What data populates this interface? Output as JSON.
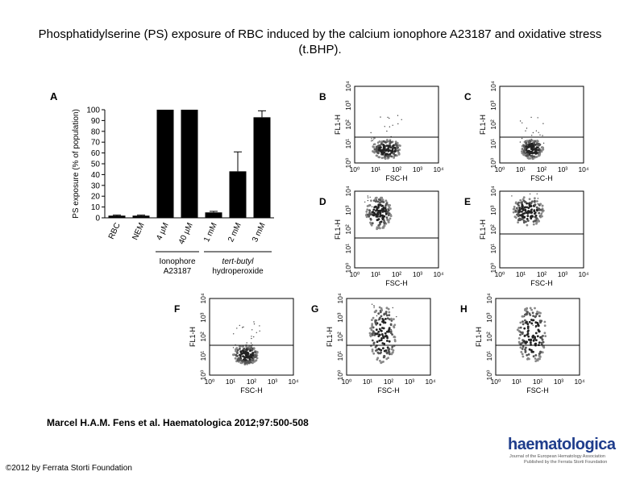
{
  "title": "Phosphatidylserine (PS) exposure of RBC induced by the calcium ionophore A23187 and oxidative stress (t.BHP).",
  "citation": "Marcel H.A.M. Fens et al. Haematologica 2012;97:500-508",
  "copyright": "©2012 by Ferrata Storti Foundation",
  "logo": {
    "word": "haematologica",
    "line1": "Journal of the European Hematology Association",
    "line2": "Published by the Ferrata Storti Foundation"
  },
  "chart_data": {
    "type": "bar",
    "panel_label": "A",
    "ylabel": "PS exposure (% of population)",
    "ylim": [
      0,
      100
    ],
    "yticks": [
      0,
      10,
      20,
      30,
      40,
      50,
      60,
      70,
      80,
      90,
      100
    ],
    "categories": [
      "RBC",
      "NEM",
      "4 µM",
      "40 µM",
      "1 mM",
      "2 mM",
      "3 mM"
    ],
    "values": [
      2,
      2,
      100,
      100,
      5,
      43,
      93
    ],
    "errors": [
      0.5,
      0.5,
      0,
      0,
      1,
      18,
      6
    ],
    "groups": [
      {
        "lines": [
          "Ionophore",
          "A23187"
        ]
      },
      {
        "lines": [
          "tert-butyl",
          "hydroperoxide"
        ]
      }
    ]
  },
  "flow_panels": [
    {
      "label": "B",
      "xlabel": "FSC-H",
      "ylabel": "FL1-H"
    },
    {
      "label": "C",
      "xlabel": "FSC-H",
      "ylabel": "FL1-H"
    },
    {
      "label": "D",
      "xlabel": "FSC-H",
      "ylabel": "FL1-H"
    },
    {
      "label": "E",
      "xlabel": "FSC-H",
      "ylabel": "FL1-H"
    },
    {
      "label": "F",
      "xlabel": "FSC-H",
      "ylabel": "FL1-H"
    },
    {
      "label": "G",
      "xlabel": "FSC-H",
      "ylabel": "FL1-H"
    },
    {
      "label": "H",
      "xlabel": "FSC-H",
      "ylabel": "FL1-H"
    }
  ],
  "flow_ticks": {
    "x": [
      "10⁰",
      "10¹",
      "10²",
      "10³",
      "10⁴"
    ],
    "y": [
      "10⁰",
      "10¹",
      "10²",
      "10³",
      "10⁴"
    ]
  }
}
